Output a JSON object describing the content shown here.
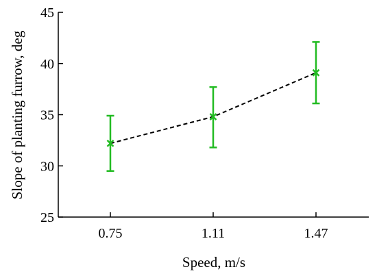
{
  "chart_data": {
    "type": "line",
    "title": "",
    "xlabel": "Speed, m/s",
    "ylabel": "Slope of planting furrow, deg",
    "categories": [
      "0.75",
      "1.11",
      "1.47"
    ],
    "ylim": [
      25,
      45
    ],
    "yticks": [
      25,
      30,
      35,
      40,
      45
    ],
    "grid": false,
    "series": [
      {
        "values": [
          32.2,
          34.8,
          39.1
        ],
        "error_low": [
          29.5,
          31.8,
          36.1
        ],
        "error_high": [
          34.9,
          37.7,
          42.1
        ],
        "marker": "x",
        "line_style": "dashed",
        "line_color": "#000000",
        "marker_color": "#22bb22"
      }
    ]
  }
}
